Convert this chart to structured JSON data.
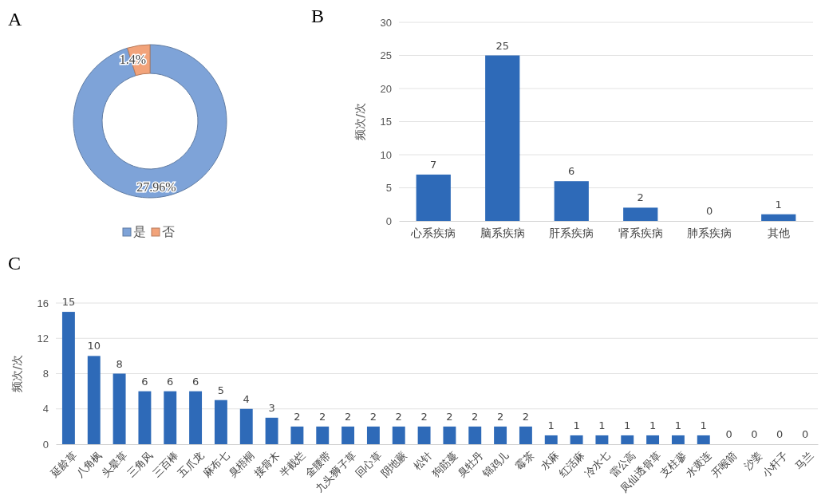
{
  "chart_data": [
    {
      "type": "donut",
      "title": "A",
      "categories": [
        "是",
        "否"
      ],
      "values": [
        27.96,
        1.4
      ],
      "colors": [
        "#7ea3d8",
        "#f2a37a"
      ],
      "value_labels": [
        "27.96%",
        "1.4%"
      ],
      "legend": "bottom"
    },
    {
      "type": "bar",
      "title": "B",
      "ylabel": "频次/次",
      "categories": [
        "心系疾病",
        "脑系疾病",
        "肝系疾病",
        "肾系疾病",
        "肺系疾病",
        "其他"
      ],
      "values": [
        7,
        25,
        6,
        2,
        0,
        1
      ],
      "color": "#2e6ab8",
      "ylim": [
        0,
        30
      ],
      "yticks": [
        0,
        5,
        10,
        15,
        20,
        25,
        30
      ],
      "grid": "y",
      "data_labels": true
    },
    {
      "type": "bar",
      "title": "C",
      "ylabel": "频次/次",
      "categories": [
        "延龄草",
        "八角枫",
        "头晕草",
        "三角风",
        "三百棒",
        "五爪龙",
        "麻布七",
        "臭梧桐",
        "接骨木",
        "半截烂",
        "金腰带",
        "九头狮子草",
        "回心草",
        "阴地蕨",
        "松针",
        "狗筋蔓",
        "臭牡丹",
        "锦鸡儿",
        "霉茶",
        "水麻",
        "红活麻",
        "冷水七",
        "雷公高",
        "凤仙透骨草",
        "支柱蓼",
        "水黄连",
        "开喉箭",
        "沙姜",
        "小杆子",
        "马兰"
      ],
      "values": [
        15,
        10,
        8,
        6,
        6,
        6,
        5,
        4,
        3,
        2,
        2,
        2,
        2,
        2,
        2,
        2,
        2,
        2,
        2,
        1,
        1,
        1,
        1,
        1,
        1,
        1,
        0,
        0,
        0,
        0
      ],
      "color": "#2e6ab8",
      "ylim": [
        0,
        16
      ],
      "yticks": [
        0,
        4,
        8,
        12,
        16
      ],
      "grid": "y",
      "data_labels": true
    }
  ]
}
